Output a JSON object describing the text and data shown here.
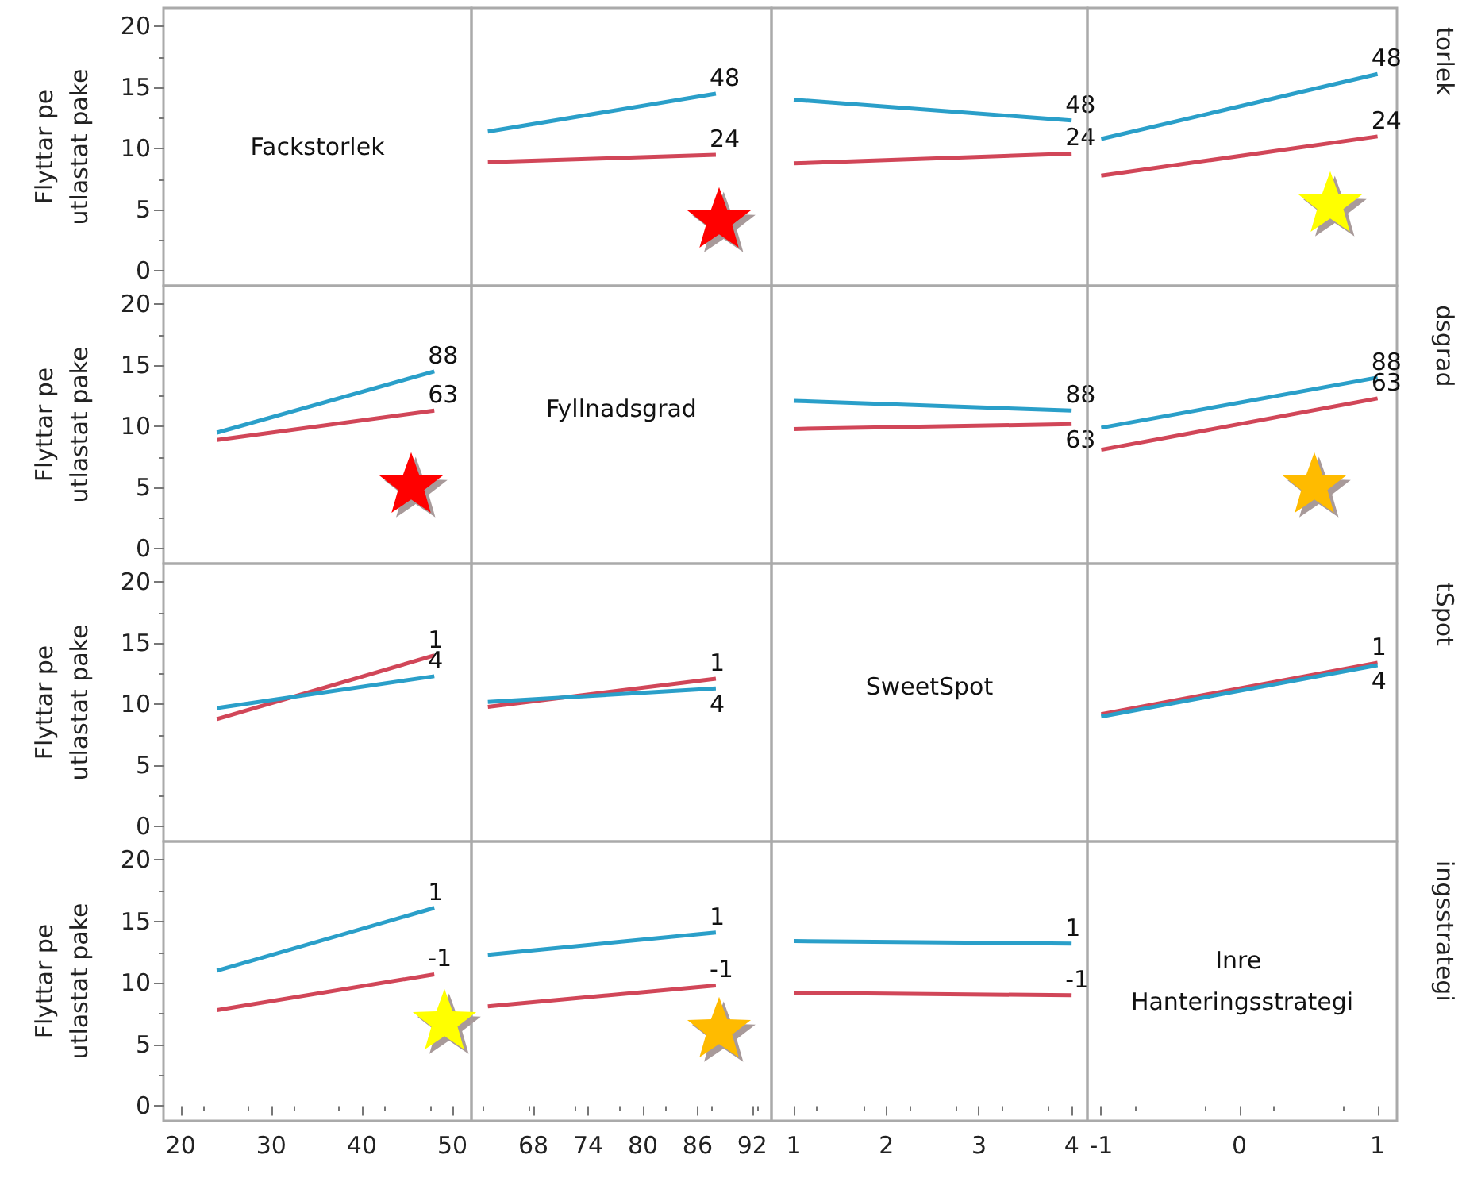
{
  "chart_data": [
    {
      "type": "line",
      "title": "Fackstorlek",
      "xlim": [
        18.1,
        52.1
      ],
      "ylabel": "Flyttar pe\nutlastat pake",
      "ylim": [
        -1.2,
        21.5
      ],
      "yticks": [
        0,
        5,
        10,
        15,
        20
      ],
      "tick_labels": "y"
    },
    {
      "type": "line",
      "x": [
        63,
        88
      ],
      "xlim": [
        61.2,
        94.1
      ],
      "ylim": [
        -1.2,
        21.5
      ],
      "marker": "none",
      "tick_labels": false,
      "series": [
        {
          "name": "48",
          "color": "#2a9fc9",
          "values": [
            11.4,
            14.5
          ]
        },
        {
          "name": "24",
          "color": "#d14658",
          "values": [
            8.9,
            9.5
          ]
        }
      ]
    },
    {
      "type": "line",
      "x": [
        1,
        4
      ],
      "xlim": [
        0.76,
        4.17
      ],
      "ylim": [
        -1.2,
        21.5
      ],
      "marker": "none",
      "tick_labels": false,
      "series": [
        {
          "name": "48",
          "color": "#2a9fc9",
          "values": [
            14.0,
            12.3
          ]
        },
        {
          "name": "24",
          "color": "#d14658",
          "values": [
            8.8,
            9.6
          ]
        }
      ]
    },
    {
      "type": "line",
      "x": [
        -1,
        1
      ],
      "xlim": [
        -1.1,
        1.14
      ],
      "ylim": [
        -1.2,
        21.5
      ],
      "marker": "none",
      "tick_labels": false,
      "y2label": "torlek",
      "series": [
        {
          "name": "48",
          "color": "#2a9fc9",
          "values": [
            10.8,
            16.1
          ]
        },
        {
          "name": "24",
          "color": "#d14658",
          "values": [
            7.8,
            11.0
          ]
        }
      ]
    },
    {
      "type": "line",
      "x": [
        24,
        48
      ],
      "xlim": [
        18.1,
        52.1
      ],
      "ylim": [
        -1.2,
        21.5
      ],
      "yticks": [
        0,
        5,
        10,
        15,
        20
      ],
      "ylabel": "Flyttar pe\nutlastat pake",
      "marker": "none",
      "tick_labels": "y",
      "series": [
        {
          "name": "88",
          "color": "#2a9fc9",
          "values": [
            9.5,
            14.5
          ]
        },
        {
          "name": "63",
          "color": "#d14658",
          "values": [
            8.9,
            11.3
          ]
        }
      ]
    },
    {
      "type": "other",
      "title": "Fyllnadsgrad"
    },
    {
      "type": "line",
      "x": [
        1,
        4
      ],
      "xlim": [
        0.76,
        4.17
      ],
      "ylim": [
        -1.2,
        21.5
      ],
      "marker": "none",
      "tick_labels": false,
      "series": [
        {
          "name": "88",
          "color": "#2a9fc9",
          "values": [
            12.1,
            11.3
          ]
        },
        {
          "name": "63",
          "color": "#d14658",
          "values": [
            9.8,
            10.2
          ]
        }
      ]
    },
    {
      "type": "line",
      "x": [
        -1,
        1
      ],
      "xlim": [
        -1.1,
        1.14
      ],
      "ylim": [
        -1.2,
        21.5
      ],
      "marker": "none",
      "tick_labels": false,
      "y2label": "dsgrad",
      "series": [
        {
          "name": "88",
          "color": "#2a9fc9",
          "values": [
            9.9,
            14.0
          ]
        },
        {
          "name": "63",
          "color": "#d14658",
          "values": [
            8.1,
            12.3
          ]
        }
      ]
    },
    {
      "type": "line",
      "x": [
        24,
        48
      ],
      "xlim": [
        18.1,
        52.1
      ],
      "ylim": [
        -1.2,
        21.5
      ],
      "yticks": [
        0,
        5,
        10,
        15,
        20
      ],
      "ylabel": "Flyttar pe\nutlastat pake",
      "marker": "none",
      "tick_labels": "y",
      "series": [
        {
          "name": "1",
          "color": "#d14658",
          "values": [
            8.8,
            14.0
          ]
        },
        {
          "name": "4",
          "color": "#2a9fc9",
          "values": [
            9.7,
            12.3
          ]
        }
      ]
    },
    {
      "type": "line",
      "x": [
        63,
        88
      ],
      "xlim": [
        61.2,
        94.1
      ],
      "ylim": [
        -1.2,
        21.5
      ],
      "marker": "none",
      "tick_labels": false,
      "series": [
        {
          "name": "1",
          "color": "#d14658",
          "values": [
            9.8,
            12.1
          ]
        },
        {
          "name": "4",
          "color": "#2a9fc9",
          "values": [
            10.2,
            11.3
          ]
        }
      ]
    },
    {
      "type": "other",
      "title": "SweetSpot"
    },
    {
      "type": "line",
      "x": [
        -1,
        1
      ],
      "xlim": [
        -1.1,
        1.14
      ],
      "ylim": [
        -1.2,
        21.5
      ],
      "marker": "none",
      "tick_labels": false,
      "y2label": "tSpot",
      "series": [
        {
          "name": "1",
          "color": "#d14658",
          "values": [
            9.2,
            13.4
          ]
        },
        {
          "name": "4",
          "color": "#2a9fc9",
          "values": [
            9.0,
            13.2
          ]
        }
      ]
    },
    {
      "type": "line",
      "x": [
        24,
        48
      ],
      "xlim": [
        18.1,
        52.1
      ],
      "xticks": [
        20,
        30,
        40,
        50
      ],
      "ylim": [
        -1.2,
        21.5
      ],
      "yticks": [
        0,
        5,
        10,
        15,
        20
      ],
      "ylabel": "Flyttar pe\nutlastat pake",
      "marker": "none",
      "series": [
        {
          "name": "1",
          "color": "#2a9fc9",
          "values": [
            11.0,
            16.1
          ]
        },
        {
          "name": "-1",
          "color": "#d14658",
          "values": [
            7.8,
            10.7
          ]
        }
      ]
    },
    {
      "type": "line",
      "x": [
        63,
        88
      ],
      "xlim": [
        61.2,
        94.1
      ],
      "xticks": [
        68,
        74,
        80,
        86,
        92
      ],
      "ylim": [
        -1.2,
        21.5
      ],
      "marker": "none",
      "tick_labels": "x",
      "series": [
        {
          "name": "1",
          "color": "#2a9fc9",
          "values": [
            12.3,
            14.1
          ]
        },
        {
          "name": "-1",
          "color": "#d14658",
          "values": [
            8.1,
            9.8
          ]
        }
      ]
    },
    {
      "type": "line",
      "x": [
        1,
        4
      ],
      "xlim": [
        0.76,
        4.17
      ],
      "xticks": [
        1,
        2,
        3,
        4
      ],
      "ylim": [
        -1.2,
        21.5
      ],
      "marker": "none",
      "tick_labels": "x",
      "series": [
        {
          "name": "1",
          "color": "#2a9fc9",
          "values": [
            13.4,
            13.2
          ]
        },
        {
          "name": "-1",
          "color": "#d14658",
          "values": [
            9.2,
            9.0
          ]
        }
      ]
    },
    {
      "type": "line",
      "title": "Inre Hanteringsstrategi",
      "xlim": [
        -1.1,
        1.14
      ],
      "xticks": [
        -1,
        0,
        1
      ],
      "ylim": [
        -1.2,
        21.5
      ],
      "tick_labels": "x",
      "y2label": "ingsstrategi"
    }
  ]
}
